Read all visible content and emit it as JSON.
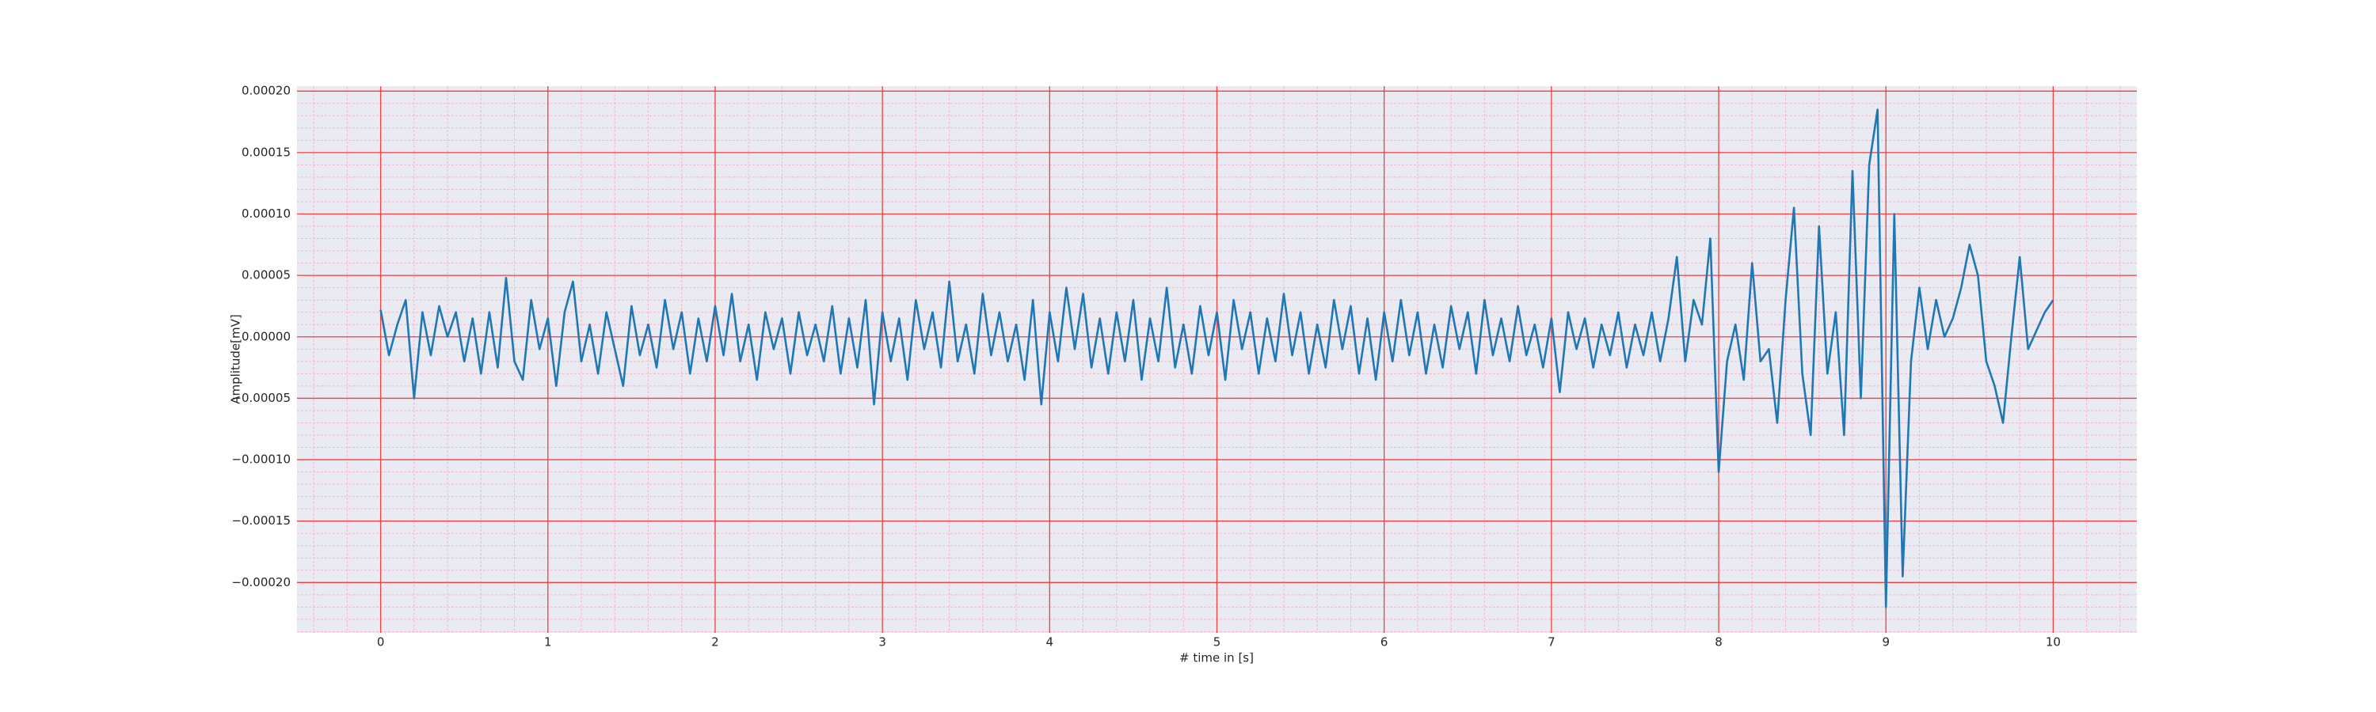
{
  "chart_data": {
    "type": "line",
    "xlabel": "# time in [s]",
    "ylabel": "Amplitude[mV]",
    "color": "#1f77b4",
    "grid": true,
    "xlim": [
      -0.5,
      10.5
    ],
    "xticks": [
      0,
      1,
      2,
      3,
      4,
      5,
      6,
      7,
      8,
      9,
      10
    ],
    "ylim": [
      -0.000241,
      0.000204
    ],
    "yticks": [
      {
        "value": -0.0002,
        "label": "−0.00020"
      },
      {
        "value": -0.00015,
        "label": "−0.00015"
      },
      {
        "value": -0.0001,
        "label": "−0.00010"
      },
      {
        "value": -5e-05,
        "label": "−0.00005"
      },
      {
        "value": 0,
        "label": "0.00000"
      },
      {
        "value": 5e-05,
        "label": "0.00005"
      },
      {
        "value": 0.0001,
        "label": "0.00010"
      },
      {
        "value": 0.00015,
        "label": "0.00015"
      },
      {
        "value": 0.0002,
        "label": "0.00020"
      }
    ],
    "x": [
      0,
      0.05,
      0.1,
      0.15,
      0.2,
      0.25,
      0.3,
      0.35,
      0.4,
      0.45,
      0.5,
      0.55,
      0.6,
      0.65,
      0.7,
      0.75,
      0.8,
      0.85,
      0.9,
      0.95,
      1,
      1.05,
      1.1,
      1.15,
      1.2,
      1.25,
      1.3,
      1.35,
      1.4,
      1.45,
      1.5,
      1.55,
      1.6,
      1.65,
      1.7,
      1.75,
      1.8,
      1.85,
      1.9,
      1.95,
      2,
      2.05,
      2.1,
      2.15,
      2.2,
      2.25,
      2.3,
      2.35,
      2.4,
      2.45,
      2.5,
      2.55,
      2.6,
      2.65,
      2.7,
      2.75,
      2.8,
      2.85,
      2.9,
      2.95,
      3,
      3.05,
      3.1,
      3.15,
      3.2,
      3.25,
      3.3,
      3.35,
      3.4,
      3.45,
      3.5,
      3.55,
      3.6,
      3.65,
      3.7,
      3.75,
      3.8,
      3.85,
      3.9,
      3.95,
      4,
      4.05,
      4.1,
      4.15,
      4.2,
      4.25,
      4.3,
      4.35,
      4.4,
      4.45,
      4.5,
      4.55,
      4.6,
      4.65,
      4.7,
      4.75,
      4.8,
      4.85,
      4.9,
      4.95,
      5,
      5.05,
      5.1,
      5.15,
      5.2,
      5.25,
      5.3,
      5.35,
      5.4,
      5.45,
      5.5,
      5.55,
      5.6,
      5.65,
      5.7,
      5.75,
      5.8,
      5.85,
      5.9,
      5.95,
      6,
      6.05,
      6.1,
      6.15,
      6.2,
      6.25,
      6.3,
      6.35,
      6.4,
      6.45,
      6.5,
      6.55,
      6.6,
      6.65,
      6.7,
      6.75,
      6.8,
      6.85,
      6.9,
      6.95,
      7,
      7.05,
      7.1,
      7.15,
      7.2,
      7.25,
      7.3,
      7.35,
      7.4,
      7.45,
      7.5,
      7.55,
      7.6,
      7.65,
      7.7,
      7.75,
      7.8,
      7.85,
      7.9,
      7.95,
      8,
      8.05,
      8.1,
      8.15,
      8.2,
      8.25,
      8.3,
      8.35,
      8.4,
      8.45,
      8.5,
      8.55,
      8.6,
      8.65,
      8.7,
      8.75,
      8.8,
      8.85,
      8.9,
      8.95,
      9,
      9.05,
      9.1,
      9.15,
      9.2,
      9.25,
      9.3,
      9.35,
      9.4,
      9.45,
      9.5,
      9.55,
      9.6,
      9.65,
      9.7,
      9.75,
      9.8,
      9.85,
      9.9,
      9.95,
      10
    ],
    "values": [
      2.2e-05,
      -1.5e-05,
      1e-05,
      3e-05,
      -5e-05,
      2e-05,
      -1.5e-05,
      2.5e-05,
      0,
      2e-05,
      -2e-05,
      1.5e-05,
      -3e-05,
      2e-05,
      -2.5e-05,
      4.8e-05,
      -2e-05,
      -3.5e-05,
      3e-05,
      -1e-05,
      1.5e-05,
      -4e-05,
      2e-05,
      4.5e-05,
      -2e-05,
      1e-05,
      -3e-05,
      2e-05,
      -1e-05,
      -4e-05,
      2.5e-05,
      -1.5e-05,
      1e-05,
      -2.5e-05,
      3e-05,
      -1e-05,
      2e-05,
      -3e-05,
      1.5e-05,
      -2e-05,
      2.5e-05,
      -1.5e-05,
      3.5e-05,
      -2e-05,
      1e-05,
      -3.5e-05,
      2e-05,
      -1e-05,
      1.5e-05,
      -3e-05,
      2e-05,
      -1.5e-05,
      1e-05,
      -2e-05,
      2.5e-05,
      -3e-05,
      1.5e-05,
      -2.5e-05,
      3e-05,
      -5.5e-05,
      2e-05,
      -2e-05,
      1.5e-05,
      -3.5e-05,
      3e-05,
      -1e-05,
      2e-05,
      -2.5e-05,
      4.5e-05,
      -2e-05,
      1e-05,
      -3e-05,
      3.5e-05,
      -1.5e-05,
      2e-05,
      -2e-05,
      1e-05,
      -3.5e-05,
      3e-05,
      -5.5e-05,
      2e-05,
      -2e-05,
      4e-05,
      -1e-05,
      3.5e-05,
      -2.5e-05,
      1.5e-05,
      -3e-05,
      2e-05,
      -2e-05,
      3e-05,
      -3.5e-05,
      1.5e-05,
      -2e-05,
      4e-05,
      -2.5e-05,
      1e-05,
      -3e-05,
      2.5e-05,
      -1.5e-05,
      2e-05,
      -3.5e-05,
      3e-05,
      -1e-05,
      2e-05,
      -3e-05,
      1.5e-05,
      -2e-05,
      3.5e-05,
      -1.5e-05,
      2e-05,
      -3e-05,
      1e-05,
      -2.5e-05,
      3e-05,
      -1e-05,
      2.5e-05,
      -3e-05,
      1.5e-05,
      -3.5e-05,
      2e-05,
      -2e-05,
      3e-05,
      -1.5e-05,
      2e-05,
      -3e-05,
      1e-05,
      -2.5e-05,
      2.5e-05,
      -1e-05,
      2e-05,
      -3e-05,
      3e-05,
      -1.5e-05,
      1.5e-05,
      -2e-05,
      2.5e-05,
      -1.5e-05,
      1e-05,
      -2.5e-05,
      1.5e-05,
      -4.5e-05,
      2e-05,
      -1e-05,
      1.5e-05,
      -2.5e-05,
      1e-05,
      -1.5e-05,
      2e-05,
      -2.5e-05,
      1e-05,
      -1.5e-05,
      2e-05,
      -2e-05,
      1.5e-05,
      6.5e-05,
      -2e-05,
      3e-05,
      1e-05,
      8e-05,
      -0.00011,
      -2e-05,
      1e-05,
      -3.5e-05,
      6e-05,
      -2e-05,
      -1e-05,
      -7e-05,
      3e-05,
      0.000105,
      -3e-05,
      -8e-05,
      9e-05,
      -3e-05,
      2e-05,
      -8e-05,
      0.000135,
      -5e-05,
      0.00014,
      0.000185,
      -0.00022,
      0.0001,
      -0.000195,
      -2e-05,
      4e-05,
      -1e-05,
      3e-05,
      0,
      1.5e-05,
      4e-05,
      7.5e-05,
      5e-05,
      -2e-05,
      -4e-05,
      -7e-05,
      0,
      6.5e-05,
      -1e-05,
      5e-06,
      2e-05,
      3e-05
    ]
  }
}
